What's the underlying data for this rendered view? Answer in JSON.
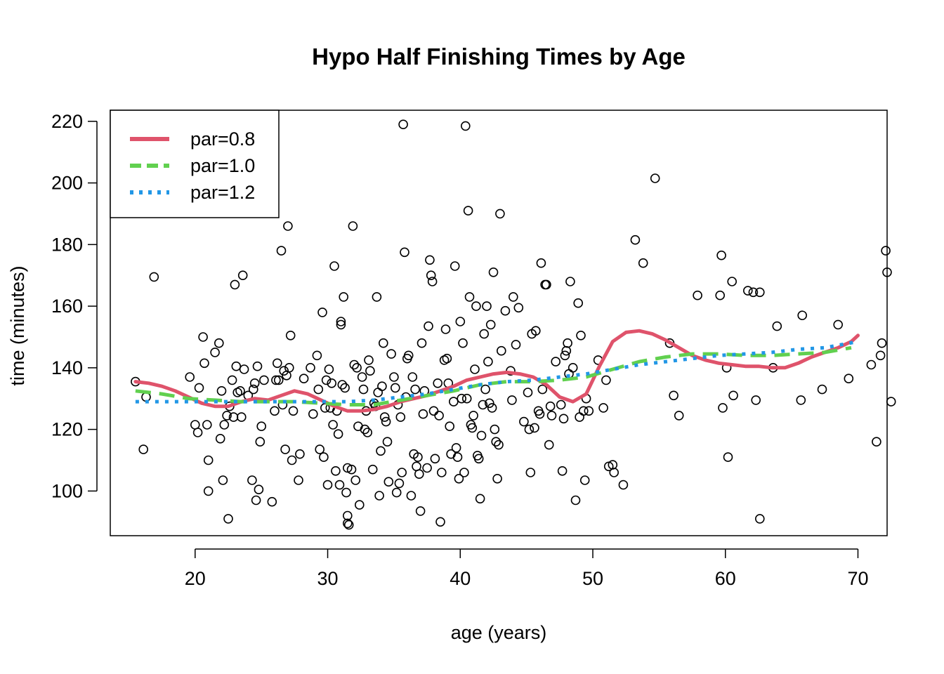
{
  "chart_data": {
    "type": "scatter",
    "title": "Hypo Half Finishing Times by Age",
    "xlabel": "age (years)",
    "ylabel": "time (minutes)",
    "xlim": [
      13.6,
      72.2
    ],
    "ylim": [
      85.5,
      223.6
    ],
    "xticks": [
      20,
      30,
      40,
      50,
      60,
      70
    ],
    "yticks": [
      100,
      120,
      140,
      160,
      180,
      200,
      220
    ],
    "legend_position": "top-left",
    "points": [
      [
        15.5,
        135.5
      ],
      [
        16.1,
        113.5
      ],
      [
        16.3,
        130.5
      ],
      [
        16.9,
        169.5
      ],
      [
        19.6,
        137
      ],
      [
        20.0,
        121.5
      ],
      [
        20.2,
        119
      ],
      [
        20.3,
        133.5
      ],
      [
        20.6,
        150
      ],
      [
        20.7,
        141.5
      ],
      [
        20.9,
        121.5
      ],
      [
        21.0,
        110
      ],
      [
        21.0,
        100
      ],
      [
        21.5,
        145
      ],
      [
        21.8,
        148
      ],
      [
        21.9,
        117
      ],
      [
        22.0,
        132.5
      ],
      [
        22.1,
        103.5
      ],
      [
        22.2,
        121.5
      ],
      [
        22.4,
        124.5
      ],
      [
        22.5,
        91
      ],
      [
        22.6,
        127.5
      ],
      [
        22.8,
        136
      ],
      [
        22.9,
        124
      ],
      [
        23.0,
        167
      ],
      [
        23.1,
        140.5
      ],
      [
        23.2,
        132
      ],
      [
        23.4,
        132.5
      ],
      [
        23.5,
        124
      ],
      [
        23.6,
        170
      ],
      [
        23.7,
        139.5
      ],
      [
        24.0,
        131
      ],
      [
        24.3,
        103.5
      ],
      [
        24.4,
        133
      ],
      [
        24.5,
        135
      ],
      [
        24.6,
        97
      ],
      [
        24.7,
        140.5
      ],
      [
        24.8,
        100.5
      ],
      [
        24.9,
        116
      ],
      [
        25.0,
        121
      ],
      [
        25.2,
        136
      ],
      [
        25.8,
        96.5
      ],
      [
        26.0,
        126
      ],
      [
        26.1,
        136
      ],
      [
        26.2,
        141.5
      ],
      [
        26.3,
        136
      ],
      [
        26.5,
        178
      ],
      [
        26.6,
        128
      ],
      [
        26.7,
        139
      ],
      [
        26.8,
        113.5
      ],
      [
        26.9,
        137.5
      ],
      [
        27.0,
        186
      ],
      [
        27.1,
        140
      ],
      [
        27.2,
        150.5
      ],
      [
        27.3,
        110
      ],
      [
        27.4,
        126
      ],
      [
        27.8,
        103.5
      ],
      [
        27.9,
        112
      ],
      [
        28.2,
        136.5
      ],
      [
        28.7,
        140
      ],
      [
        28.9,
        125
      ],
      [
        29.2,
        144
      ],
      [
        29.3,
        133
      ],
      [
        29.4,
        113.5
      ],
      [
        29.6,
        158
      ],
      [
        29.7,
        111
      ],
      [
        29.8,
        127
      ],
      [
        29.9,
        136
      ],
      [
        30.0,
        102
      ],
      [
        30.1,
        139.5
      ],
      [
        30.2,
        127
      ],
      [
        30.3,
        135
      ],
      [
        30.4,
        121.5
      ],
      [
        30.5,
        173
      ],
      [
        30.6,
        106.5
      ],
      [
        30.7,
        126
      ],
      [
        30.8,
        118.5
      ],
      [
        30.9,
        102
      ],
      [
        31.0,
        155
      ],
      [
        31.0,
        154
      ],
      [
        31.1,
        134.5
      ],
      [
        31.2,
        163
      ],
      [
        31.3,
        133.5
      ],
      [
        31.4,
        99.5
      ],
      [
        31.5,
        107.5
      ],
      [
        31.5,
        92
      ],
      [
        31.5,
        89.5
      ],
      [
        31.6,
        89
      ],
      [
        31.8,
        107
      ],
      [
        31.9,
        186
      ],
      [
        32.0,
        141
      ],
      [
        32.1,
        103.5
      ],
      [
        32.2,
        140
      ],
      [
        32.3,
        121
      ],
      [
        32.4,
        95.5
      ],
      [
        32.6,
        137
      ],
      [
        32.7,
        133
      ],
      [
        32.8,
        120
      ],
      [
        32.9,
        126
      ],
      [
        33.0,
        119
      ],
      [
        33.1,
        142.5
      ],
      [
        33.2,
        139
      ],
      [
        33.4,
        107
      ],
      [
        33.5,
        128.5
      ],
      [
        33.6,
        127.5
      ],
      [
        33.7,
        163
      ],
      [
        33.8,
        132
      ],
      [
        33.9,
        98.5
      ],
      [
        34.0,
        113
      ],
      [
        34.1,
        134
      ],
      [
        34.2,
        148
      ],
      [
        34.3,
        124
      ],
      [
        34.4,
        122.5
      ],
      [
        34.5,
        116
      ],
      [
        34.6,
        103
      ],
      [
        34.8,
        144.5
      ],
      [
        35.0,
        137
      ],
      [
        35.1,
        133.5
      ],
      [
        35.2,
        99.5
      ],
      [
        35.3,
        128
      ],
      [
        35.4,
        102.5
      ],
      [
        35.5,
        124
      ],
      [
        35.6,
        106
      ],
      [
        35.7,
        219
      ],
      [
        35.8,
        177.5
      ],
      [
        35.9,
        130.5
      ],
      [
        36.0,
        143
      ],
      [
        36.1,
        144
      ],
      [
        36.3,
        98.5
      ],
      [
        36.4,
        137
      ],
      [
        36.5,
        112
      ],
      [
        36.6,
        133
      ],
      [
        36.7,
        108
      ],
      [
        36.8,
        111
      ],
      [
        36.9,
        105.5
      ],
      [
        37.0,
        93.5
      ],
      [
        37.1,
        148
      ],
      [
        37.2,
        125
      ],
      [
        37.3,
        132.5
      ],
      [
        37.5,
        107.5
      ],
      [
        37.6,
        153.5
      ],
      [
        37.7,
        175
      ],
      [
        37.8,
        170
      ],
      [
        37.9,
        168
      ],
      [
        38.0,
        126
      ],
      [
        38.1,
        110.5
      ],
      [
        38.3,
        135
      ],
      [
        38.4,
        124.5
      ],
      [
        38.5,
        90
      ],
      [
        38.6,
        106
      ],
      [
        38.8,
        142.5
      ],
      [
        38.9,
        152.5
      ],
      [
        39.0,
        143
      ],
      [
        39.1,
        135
      ],
      [
        39.2,
        121
      ],
      [
        39.3,
        112
      ],
      [
        39.5,
        129
      ],
      [
        39.6,
        173
      ],
      [
        39.7,
        114
      ],
      [
        39.8,
        111
      ],
      [
        39.9,
        104
      ],
      [
        40.0,
        155
      ],
      [
        40.1,
        130
      ],
      [
        40.2,
        148
      ],
      [
        40.3,
        106
      ],
      [
        40.4,
        218.5
      ],
      [
        40.5,
        130
      ],
      [
        40.6,
        191
      ],
      [
        40.7,
        163
      ],
      [
        40.8,
        121.5
      ],
      [
        40.9,
        120.5
      ],
      [
        41.0,
        124.5
      ],
      [
        41.1,
        139.5
      ],
      [
        41.2,
        160
      ],
      [
        41.3,
        111.5
      ],
      [
        41.4,
        110.5
      ],
      [
        41.5,
        97.5
      ],
      [
        41.6,
        118
      ],
      [
        41.7,
        128
      ],
      [
        41.8,
        151
      ],
      [
        41.9,
        133
      ],
      [
        42.0,
        160
      ],
      [
        42.1,
        142
      ],
      [
        42.2,
        128.5
      ],
      [
        42.3,
        154
      ],
      [
        42.4,
        127
      ],
      [
        42.5,
        171
      ],
      [
        42.6,
        120
      ],
      [
        42.7,
        116
      ],
      [
        42.8,
        104
      ],
      [
        42.9,
        115
      ],
      [
        43.0,
        190
      ],
      [
        43.1,
        145.5
      ],
      [
        43.4,
        158.5
      ],
      [
        43.8,
        139
      ],
      [
        43.9,
        129.5
      ],
      [
        44.0,
        163
      ],
      [
        44.2,
        147.5
      ],
      [
        44.4,
        159.5
      ],
      [
        44.8,
        122.5
      ],
      [
        45.1,
        132
      ],
      [
        45.2,
        120
      ],
      [
        45.3,
        106
      ],
      [
        45.4,
        151
      ],
      [
        45.6,
        120.5
      ],
      [
        45.7,
        152
      ],
      [
        45.9,
        126
      ],
      [
        46.0,
        125
      ],
      [
        46.1,
        174
      ],
      [
        46.2,
        133
      ],
      [
        46.4,
        167
      ],
      [
        46.5,
        167
      ],
      [
        46.7,
        115
      ],
      [
        46.8,
        127.5
      ],
      [
        46.9,
        124.5
      ],
      [
        47.2,
        142
      ],
      [
        47.6,
        128
      ],
      [
        47.7,
        106.5
      ],
      [
        47.8,
        123.5
      ],
      [
        47.9,
        144
      ],
      [
        48.0,
        145.5
      ],
      [
        48.1,
        148
      ],
      [
        48.2,
        138
      ],
      [
        48.3,
        168
      ],
      [
        48.5,
        140
      ],
      [
        48.7,
        97
      ],
      [
        48.9,
        161
      ],
      [
        49.0,
        124
      ],
      [
        49.1,
        150.5
      ],
      [
        49.3,
        126
      ],
      [
        49.4,
        103.5
      ],
      [
        49.5,
        130
      ],
      [
        49.7,
        126
      ],
      [
        50.4,
        142.5
      ],
      [
        50.8,
        127
      ],
      [
        51.0,
        136
      ],
      [
        51.2,
        108
      ],
      [
        51.5,
        108.5
      ],
      [
        51.6,
        106
      ],
      [
        52.3,
        102
      ],
      [
        53.2,
        181.5
      ],
      [
        53.8,
        174
      ],
      [
        54.7,
        201.5
      ],
      [
        55.8,
        148
      ],
      [
        56.1,
        131
      ],
      [
        56.5,
        124.5
      ],
      [
        57.9,
        163.5
      ],
      [
        59.6,
        163.5
      ],
      [
        59.7,
        176.5
      ],
      [
        59.8,
        127
      ],
      [
        60.1,
        140
      ],
      [
        60.2,
        111
      ],
      [
        60.5,
        168
      ],
      [
        60.6,
        131
      ],
      [
        61.7,
        165
      ],
      [
        62.1,
        164.5
      ],
      [
        62.3,
        129.5
      ],
      [
        62.6,
        164.5
      ],
      [
        62.6,
        91
      ],
      [
        63.6,
        140
      ],
      [
        63.9,
        153.5
      ],
      [
        65.7,
        129.5
      ],
      [
        65.8,
        157
      ],
      [
        67.3,
        133
      ],
      [
        68.5,
        154
      ],
      [
        69.3,
        136.5
      ],
      [
        71.0,
        141
      ],
      [
        71.4,
        116
      ],
      [
        71.7,
        144
      ],
      [
        71.8,
        148
      ],
      [
        72.1,
        178
      ],
      [
        72.2,
        171
      ],
      [
        72.5,
        129
      ]
    ],
    "series": [
      {
        "name": "par=0.8",
        "color": "#DF536B",
        "dash": "solid",
        "x": [
          15.5,
          16.5,
          17.5,
          18.5,
          19.5,
          20.5,
          21.5,
          22.5,
          23.5,
          24.5,
          25.5,
          26.5,
          27.5,
          28.5,
          29.5,
          30.5,
          31.5,
          32.5,
          33.5,
          34.5,
          35.5,
          36.5,
          37.5,
          38.5,
          39.5,
          40.5,
          41.5,
          42.5,
          43.5,
          44.5,
          45.5,
          46.5,
          47.5,
          48.5,
          49.5,
          50.5,
          51.5,
          52.5,
          53.5,
          54.5,
          55.5,
          56.5,
          57.5,
          58.5,
          59.5,
          60.5,
          61.5,
          62.5,
          63.5,
          64.5,
          65.5,
          66.5,
          67.5,
          68.5,
          69.5,
          70.0
        ],
        "y": [
          135.5,
          135,
          134,
          132.5,
          130.5,
          128.5,
          127.5,
          127.5,
          129,
          130,
          129.5,
          131,
          132.5,
          131.5,
          129.5,
          127.5,
          126,
          126,
          126.5,
          127.5,
          129,
          130,
          131,
          132.5,
          134,
          136,
          137,
          138,
          138.5,
          138,
          137,
          134.5,
          130.5,
          129,
          131.5,
          140.5,
          148.5,
          151.5,
          152,
          151,
          149,
          146.5,
          144,
          142.5,
          141.5,
          141,
          140.5,
          140.5,
          140,
          140,
          141.5,
          143.5,
          145,
          146.5,
          148.5,
          150.5
        ]
      },
      {
        "name": "par=1.0",
        "color": "#61D04F",
        "dash": "dashed",
        "x": [
          15.5,
          17.5,
          19.5,
          21.5,
          23.5,
          25.5,
          27.5,
          29.5,
          31.5,
          33.5,
          35.5,
          37.5,
          39.5,
          41.5,
          43.5,
          45.5,
          47.5,
          49.5,
          51.5,
          53.5,
          55.5,
          57.5,
          59.5,
          61.5,
          63.5,
          65.5,
          67.5,
          69.5
        ],
        "y": [
          132.5,
          131.5,
          130,
          129.5,
          129,
          129,
          129,
          128.5,
          128,
          128,
          129.5,
          131,
          132.5,
          134.5,
          135.5,
          135.5,
          136,
          137,
          139.5,
          142,
          143.5,
          144.5,
          144.5,
          144,
          144,
          144.5,
          145,
          146.5
        ]
      },
      {
        "name": "par=1.2",
        "color": "#2297E6",
        "dash": "dotted",
        "x": [
          15.5,
          17.5,
          19.5,
          21.5,
          23.5,
          25.5,
          27.5,
          29.5,
          31.5,
          33.5,
          35.5,
          37.5,
          39.5,
          41.5,
          43.5,
          45.5,
          47.5,
          49.5,
          51.5,
          53.5,
          55.5,
          57.5,
          59.5,
          61.5,
          63.5,
          65.5,
          67.5,
          70.0
        ],
        "y": [
          129,
          129,
          129,
          129,
          129,
          129,
          129,
          129,
          129,
          129.5,
          130.5,
          131.5,
          133,
          134.5,
          135.5,
          136,
          137,
          138,
          139.5,
          141,
          142,
          143,
          144,
          144.5,
          145,
          146,
          146.5,
          148.5
        ]
      }
    ]
  }
}
